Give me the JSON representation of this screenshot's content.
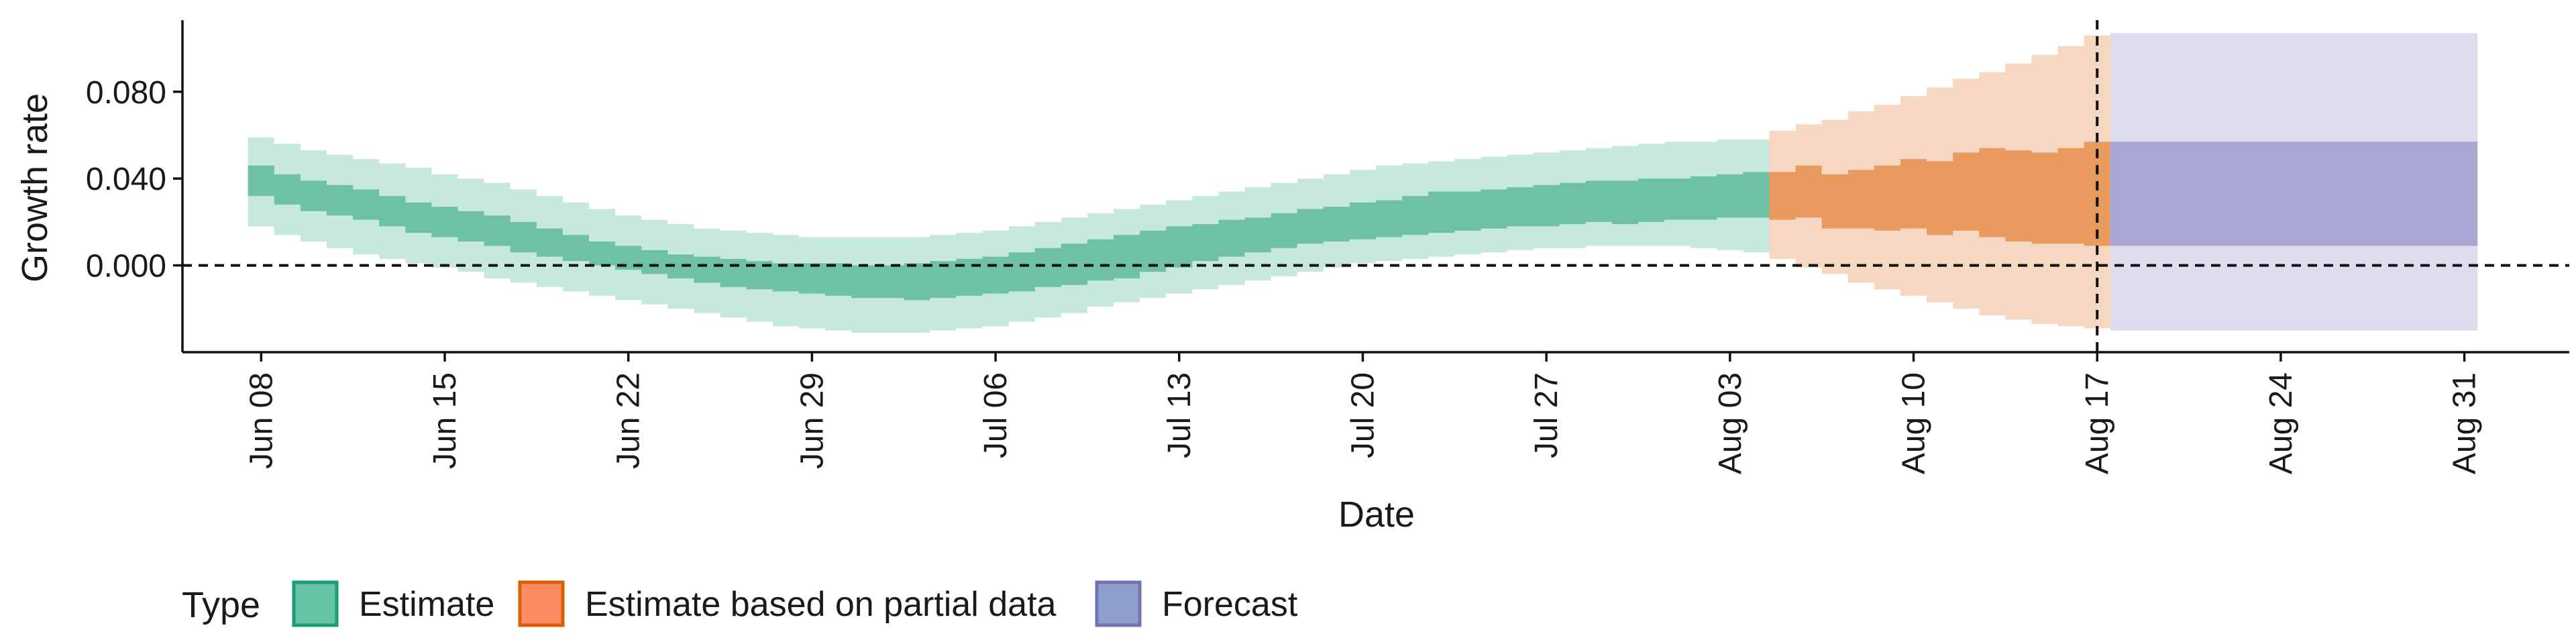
{
  "chart_data": {
    "type": "area",
    "title": "",
    "xlabel": "Date",
    "ylabel": "Growth rate",
    "x_axis_type": "date",
    "x_range": [
      "2020-06-05",
      "2020-09-04"
    ],
    "xticks": [
      {
        "date": "2020-06-08",
        "label": "Jun 08"
      },
      {
        "date": "2020-06-15",
        "label": "Jun 15"
      },
      {
        "date": "2020-06-22",
        "label": "Jun 22"
      },
      {
        "date": "2020-06-29",
        "label": "Jun 29"
      },
      {
        "date": "2020-07-06",
        "label": "Jul 06"
      },
      {
        "date": "2020-07-13",
        "label": "Jul 13"
      },
      {
        "date": "2020-07-20",
        "label": "Jul 20"
      },
      {
        "date": "2020-07-27",
        "label": "Jul 27"
      },
      {
        "date": "2020-08-03",
        "label": "Aug 03"
      },
      {
        "date": "2020-08-10",
        "label": "Aug 10"
      },
      {
        "date": "2020-08-17",
        "label": "Aug 17"
      },
      {
        "date": "2020-08-24",
        "label": "Aug 24"
      },
      {
        "date": "2020-08-31",
        "label": "Aug 31"
      }
    ],
    "ylim": [
      -0.04,
      0.113
    ],
    "yticks": [
      {
        "value": 0.0,
        "label": "0.000"
      },
      {
        "value": 0.04,
        "label": "0.040"
      },
      {
        "value": 0.08,
        "label": "0.080"
      }
    ],
    "reference_lines": {
      "horizontal_dashed_y": 0.0,
      "vertical_dashed_x": "2020-08-17"
    },
    "grid": false,
    "legend": {
      "position": "bottom-left",
      "title": "Type",
      "entries": [
        {
          "label": "Estimate",
          "color": "#66c2a5",
          "border": "#1b9e77"
        },
        {
          "label": "Estimate based on partial data",
          "color": "#fc8d62",
          "border": "#d95f02"
        },
        {
          "label": "Forecast",
          "color": "#8da0cb",
          "border": "#7570b3"
        }
      ]
    },
    "colors": {
      "estimate_inner": "#6fc1a6",
      "estimate_outer": "#c6e8dd",
      "partial_inner": "#e99a5e",
      "partial_outer": "#f6d7c2",
      "forecast_inner": "#a8a6d2",
      "forecast_outer": "#dcdcec"
    },
    "series": [
      {
        "name": "Estimate",
        "x": [
          "2020-06-08",
          "2020-06-09",
          "2020-06-10",
          "2020-06-11",
          "2020-06-12",
          "2020-06-13",
          "2020-06-14",
          "2020-06-15",
          "2020-06-16",
          "2020-06-17",
          "2020-06-18",
          "2020-06-19",
          "2020-06-20",
          "2020-06-21",
          "2020-06-22",
          "2020-06-23",
          "2020-06-24",
          "2020-06-25",
          "2020-06-26",
          "2020-06-27",
          "2020-06-28",
          "2020-06-29",
          "2020-06-30",
          "2020-07-01",
          "2020-07-02",
          "2020-07-03",
          "2020-07-04",
          "2020-07-05",
          "2020-07-06",
          "2020-07-07",
          "2020-07-08",
          "2020-07-09",
          "2020-07-10",
          "2020-07-11",
          "2020-07-12",
          "2020-07-13",
          "2020-07-14",
          "2020-07-15",
          "2020-07-16",
          "2020-07-17",
          "2020-07-18",
          "2020-07-19",
          "2020-07-20",
          "2020-07-21",
          "2020-07-22",
          "2020-07-23",
          "2020-07-24",
          "2020-07-25",
          "2020-07-26",
          "2020-07-27",
          "2020-07-28",
          "2020-07-29",
          "2020-07-30",
          "2020-07-31",
          "2020-08-01",
          "2020-08-02",
          "2020-08-03",
          "2020-08-04"
        ],
        "inner_low": [
          0.032,
          0.028,
          0.025,
          0.023,
          0.021,
          0.018,
          0.015,
          0.013,
          0.011,
          0.009,
          0.006,
          0.004,
          0.002,
          0.0,
          -0.002,
          -0.004,
          -0.006,
          -0.008,
          -0.01,
          -0.011,
          -0.012,
          -0.013,
          -0.014,
          -0.015,
          -0.015,
          -0.016,
          -0.015,
          -0.014,
          -0.013,
          -0.012,
          -0.01,
          -0.009,
          -0.007,
          -0.006,
          -0.003,
          -0.001,
          0.002,
          0.004,
          0.006,
          0.008,
          0.01,
          0.011,
          0.012,
          0.013,
          0.014,
          0.015,
          0.016,
          0.017,
          0.018,
          0.018,
          0.019,
          0.02,
          0.019,
          0.02,
          0.021,
          0.021,
          0.022,
          0.022
        ],
        "inner_high": [
          0.046,
          0.042,
          0.039,
          0.037,
          0.035,
          0.032,
          0.029,
          0.027,
          0.025,
          0.023,
          0.02,
          0.017,
          0.014,
          0.011,
          0.009,
          0.007,
          0.005,
          0.004,
          0.003,
          0.002,
          0.001,
          0.001,
          0.001,
          0.0,
          0.0,
          0.001,
          0.002,
          0.003,
          0.004,
          0.006,
          0.008,
          0.01,
          0.012,
          0.014,
          0.016,
          0.018,
          0.019,
          0.021,
          0.022,
          0.024,
          0.026,
          0.027,
          0.029,
          0.03,
          0.032,
          0.034,
          0.034,
          0.035,
          0.036,
          0.037,
          0.038,
          0.039,
          0.039,
          0.04,
          0.04,
          0.041,
          0.042,
          0.043
        ],
        "outer_low": [
          0.018,
          0.014,
          0.011,
          0.008,
          0.005,
          0.003,
          0.001,
          -0.001,
          -0.003,
          -0.006,
          -0.008,
          -0.01,
          -0.012,
          -0.014,
          -0.016,
          -0.018,
          -0.02,
          -0.022,
          -0.024,
          -0.026,
          -0.028,
          -0.029,
          -0.03,
          -0.031,
          -0.031,
          -0.031,
          -0.03,
          -0.029,
          -0.028,
          -0.026,
          -0.024,
          -0.022,
          -0.019,
          -0.017,
          -0.015,
          -0.013,
          -0.011,
          -0.009,
          -0.007,
          -0.005,
          -0.003,
          -0.001,
          0.001,
          0.002,
          0.003,
          0.004,
          0.005,
          0.006,
          0.007,
          0.008,
          0.008,
          0.009,
          0.009,
          0.009,
          0.009,
          0.008,
          0.007,
          0.006
        ],
        "outer_high": [
          0.059,
          0.056,
          0.053,
          0.051,
          0.049,
          0.047,
          0.045,
          0.042,
          0.04,
          0.038,
          0.035,
          0.032,
          0.029,
          0.026,
          0.023,
          0.021,
          0.019,
          0.017,
          0.016,
          0.015,
          0.014,
          0.013,
          0.013,
          0.013,
          0.013,
          0.013,
          0.014,
          0.015,
          0.016,
          0.018,
          0.02,
          0.022,
          0.024,
          0.026,
          0.028,
          0.03,
          0.032,
          0.034,
          0.036,
          0.038,
          0.04,
          0.042,
          0.044,
          0.046,
          0.047,
          0.048,
          0.049,
          0.05,
          0.051,
          0.052,
          0.053,
          0.054,
          0.055,
          0.056,
          0.057,
          0.057,
          0.058,
          0.058
        ]
      },
      {
        "name": "Estimate based on partial data",
        "x": [
          "2020-08-05",
          "2020-08-06",
          "2020-08-07",
          "2020-08-08",
          "2020-08-09",
          "2020-08-10",
          "2020-08-11",
          "2020-08-12",
          "2020-08-13",
          "2020-08-14",
          "2020-08-15",
          "2020-08-16",
          "2020-08-17"
        ],
        "inner_low": [
          0.021,
          0.022,
          0.017,
          0.017,
          0.016,
          0.017,
          0.014,
          0.016,
          0.013,
          0.011,
          0.01,
          0.01,
          0.009
        ],
        "inner_high": [
          0.043,
          0.046,
          0.042,
          0.044,
          0.046,
          0.049,
          0.048,
          0.052,
          0.054,
          0.053,
          0.052,
          0.054,
          0.057
        ],
        "outer_low": [
          0.003,
          -0.001,
          -0.004,
          -0.008,
          -0.011,
          -0.014,
          -0.017,
          -0.02,
          -0.023,
          -0.025,
          -0.027,
          -0.028,
          -0.029
        ],
        "outer_high": [
          0.062,
          0.065,
          0.067,
          0.071,
          0.074,
          0.078,
          0.082,
          0.086,
          0.089,
          0.093,
          0.097,
          0.101,
          0.106
        ]
      },
      {
        "name": "Forecast",
        "x_start": "2020-08-18",
        "x_end": "2020-08-31",
        "inner": [
          0.009,
          0.057
        ],
        "outer": [
          -0.03,
          0.107
        ]
      }
    ]
  }
}
